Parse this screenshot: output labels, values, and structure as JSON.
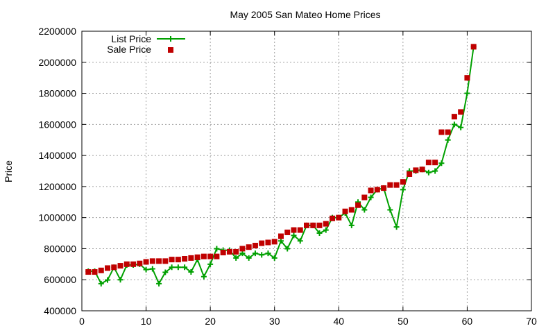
{
  "chart_data": {
    "type": "line",
    "title": "May 2005 San Mateo Home Prices",
    "xlabel": "",
    "ylabel": "Price",
    "xlim": [
      0,
      70
    ],
    "ylim": [
      400000,
      2200000
    ],
    "x_ticks": [
      "0",
      "10",
      "20",
      "30",
      "40",
      "50",
      "60",
      "70"
    ],
    "y_ticks": [
      "400000",
      "600000",
      "800000",
      "1000000",
      "1200000",
      "1400000",
      "1600000",
      "1800000",
      "2000000",
      "2200000"
    ],
    "grid": true,
    "legend_position": "top-left",
    "series": [
      {
        "name": "List Price",
        "style": "line-with-plus-markers",
        "color": "#00a000",
        "x": [
          1,
          2,
          3,
          4,
          5,
          6,
          7,
          8,
          9,
          10,
          11,
          12,
          13,
          14,
          15,
          16,
          17,
          18,
          19,
          20,
          21,
          22,
          23,
          24,
          25,
          26,
          27,
          28,
          29,
          30,
          31,
          32,
          33,
          34,
          35,
          36,
          37,
          38,
          39,
          40,
          41,
          42,
          43,
          44,
          45,
          46,
          47,
          48,
          49,
          50,
          51,
          52,
          53,
          54,
          55,
          56,
          57,
          58,
          59,
          60,
          61
        ],
        "y": [
          655000,
          655000,
          575000,
          598000,
          680000,
          600000,
          695000,
          695000,
          700000,
          665000,
          670000,
          575000,
          648000,
          680000,
          680000,
          680000,
          650000,
          730000,
          620000,
          700000,
          800000,
          790000,
          790000,
          740000,
          770000,
          740000,
          770000,
          760000,
          770000,
          740000,
          850000,
          800000,
          885000,
          850000,
          950000,
          950000,
          900000,
          920000,
          1000000,
          1000000,
          1030000,
          950000,
          1100000,
          1050000,
          1130000,
          1180000,
          1190000,
          1050000,
          940000,
          1180000,
          1300000,
          1300000,
          1310000,
          1290000,
          1300000,
          1350000,
          1500000,
          1600000,
          1580000,
          1800000,
          2100000
        ]
      },
      {
        "name": "Sale Price",
        "style": "square-markers",
        "color": "#c00000",
        "x": [
          1,
          2,
          3,
          4,
          5,
          6,
          7,
          8,
          9,
          10,
          11,
          12,
          13,
          14,
          15,
          16,
          17,
          18,
          19,
          20,
          21,
          22,
          23,
          24,
          25,
          26,
          27,
          28,
          29,
          30,
          31,
          32,
          33,
          34,
          35,
          36,
          37,
          38,
          39,
          40,
          41,
          42,
          43,
          44,
          45,
          46,
          47,
          48,
          49,
          50,
          51,
          52,
          53,
          54,
          55,
          56,
          57,
          58,
          59,
          60,
          61
        ],
        "y": [
          650000,
          650000,
          660000,
          675000,
          680000,
          690000,
          700000,
          700000,
          705000,
          715000,
          720000,
          720000,
          720000,
          730000,
          730000,
          735000,
          740000,
          745000,
          750000,
          750000,
          750000,
          775000,
          780000,
          780000,
          800000,
          810000,
          820000,
          835000,
          840000,
          845000,
          880000,
          905000,
          920000,
          920000,
          950000,
          950000,
          950000,
          960000,
          995000,
          1000000,
          1040000,
          1050000,
          1080000,
          1130000,
          1175000,
          1180000,
          1190000,
          1210000,
          1210000,
          1230000,
          1280000,
          1305000,
          1310000,
          1355000,
          1355000,
          1550000,
          1550000,
          1650000,
          1680000,
          1900000,
          2100000
        ]
      }
    ]
  }
}
